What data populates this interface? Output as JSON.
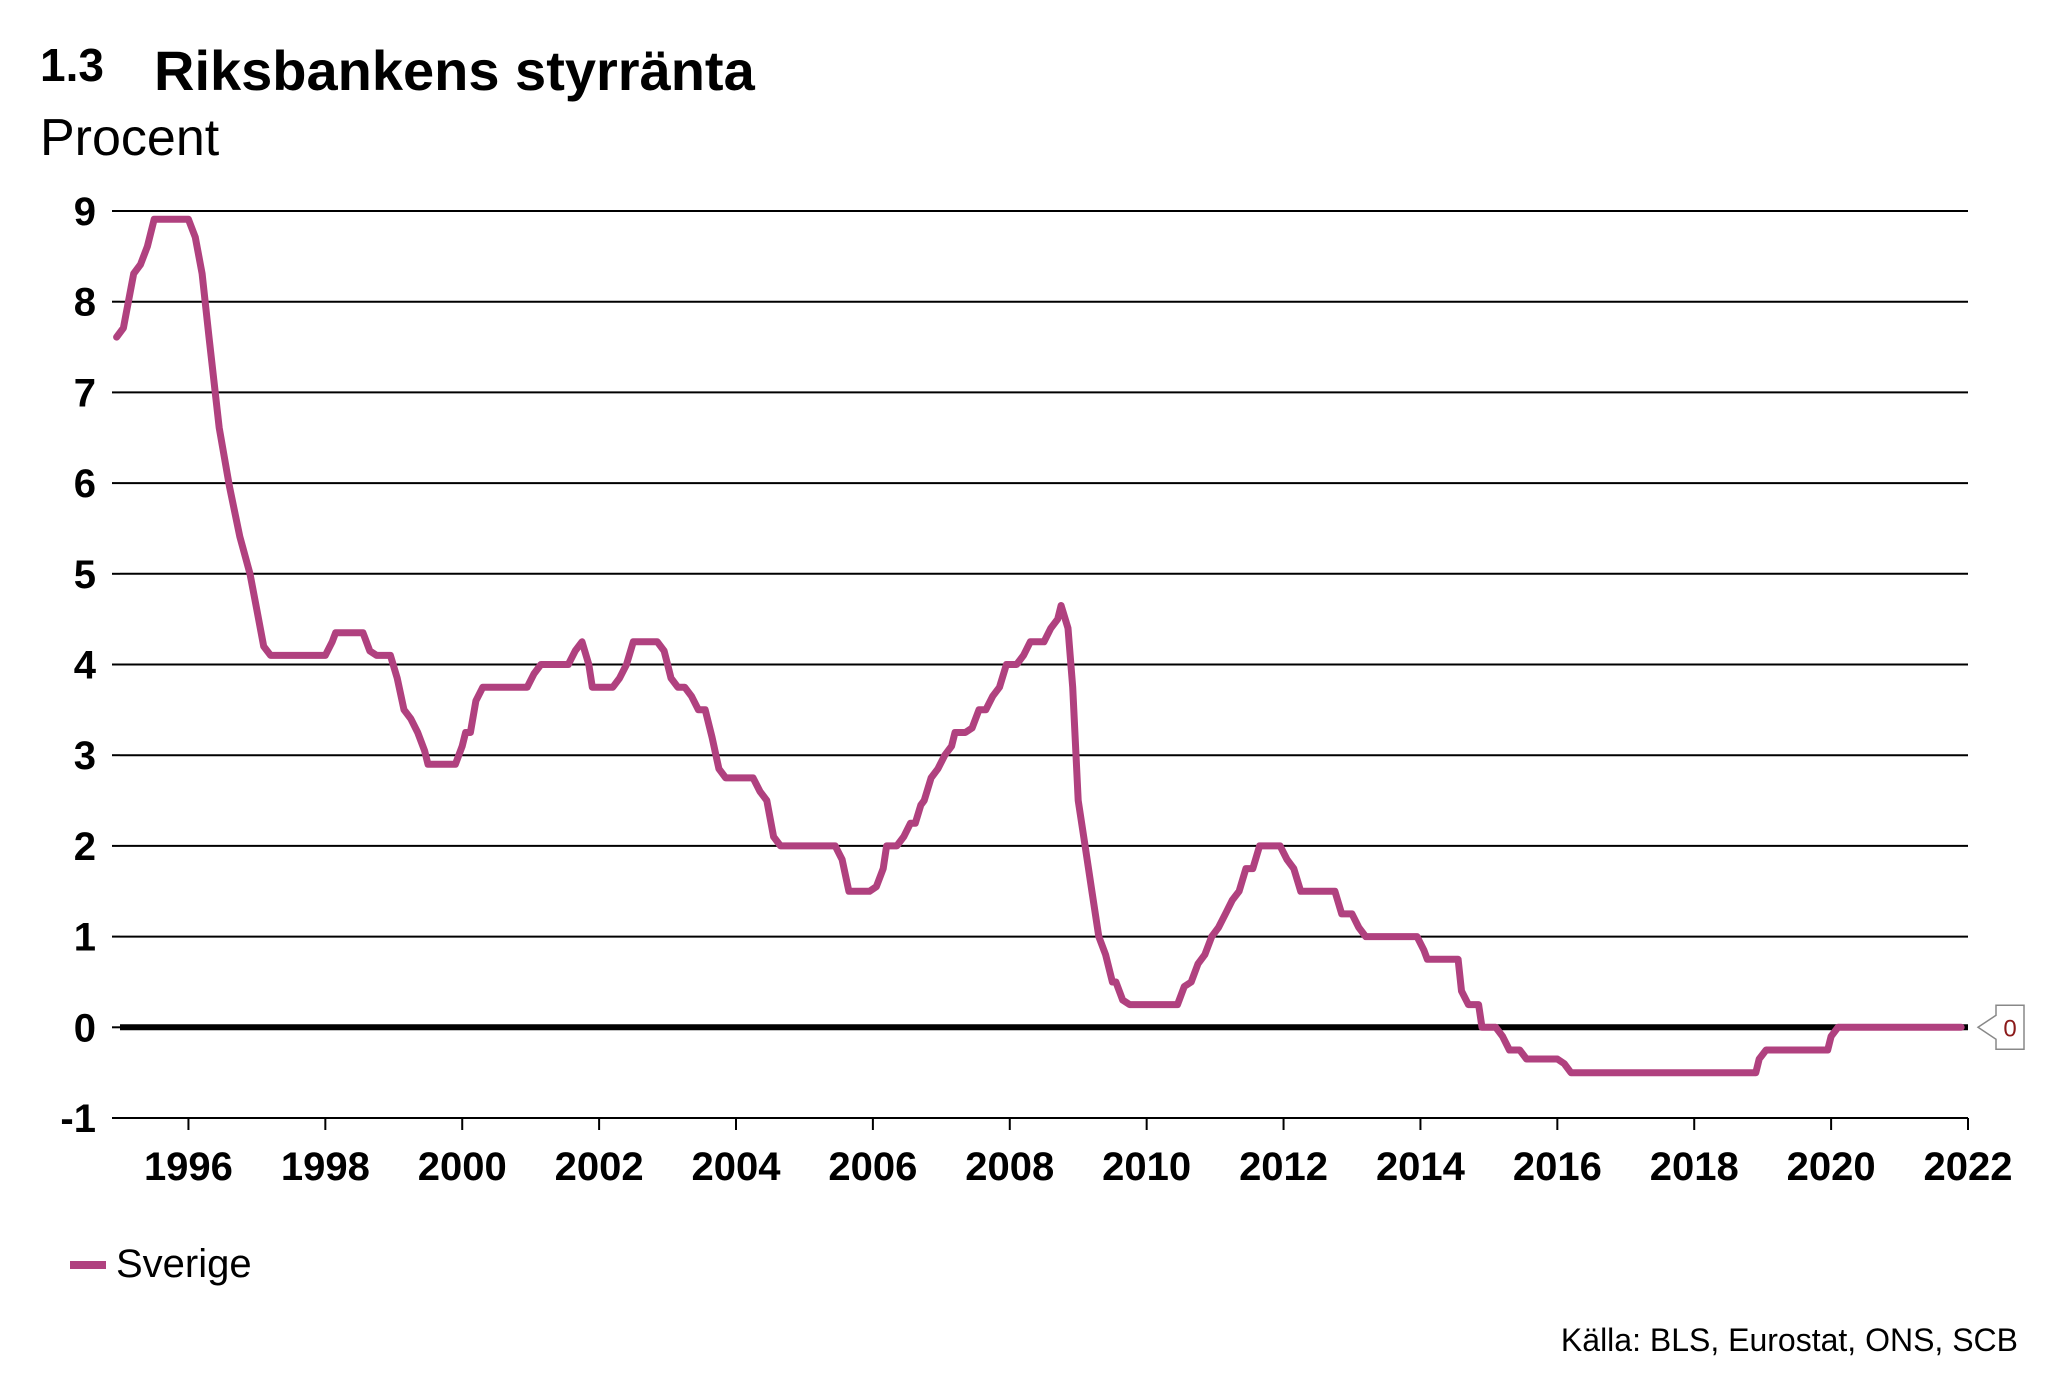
{
  "header": {
    "number": "1.3",
    "title": "Riksbankens styrränta",
    "unit": "Procent"
  },
  "source": "Källa: BLS, Eurostat, ONS, SCB",
  "chart_data": {
    "type": "line",
    "title": "Riksbankens styrränta",
    "ylabel": "Procent",
    "xlabel": "",
    "xlim": [
      1995.0,
      2022.0
    ],
    "ylim": [
      -1,
      9
    ],
    "y_ticks": [
      -1,
      0,
      1,
      2,
      3,
      4,
      5,
      6,
      7,
      8,
      9
    ],
    "x_ticks": [
      1996,
      1998,
      2000,
      2002,
      2004,
      2006,
      2008,
      2010,
      2012,
      2014,
      2016,
      2018,
      2020,
      2022
    ],
    "grid": "horizontal",
    "legend_position": "bottom-left",
    "end_label": "0",
    "series": [
      {
        "name": "Sverige",
        "color": "#b0417f",
        "points": [
          [
            1994.95,
            7.61
          ],
          [
            1995.05,
            7.71
          ],
          [
            1995.2,
            8.31
          ],
          [
            1995.3,
            8.41
          ],
          [
            1995.4,
            8.61
          ],
          [
            1995.5,
            8.91
          ],
          [
            1995.6,
            8.91
          ],
          [
            1995.9,
            8.91
          ],
          [
            1996.0,
            8.91
          ],
          [
            1996.1,
            8.71
          ],
          [
            1996.2,
            8.31
          ],
          [
            1996.3,
            7.61
          ],
          [
            1996.45,
            6.61
          ],
          [
            1996.6,
            5.96
          ],
          [
            1996.75,
            5.41
          ],
          [
            1996.9,
            5.0
          ],
          [
            1997.0,
            4.6
          ],
          [
            1997.1,
            4.2
          ],
          [
            1997.2,
            4.1
          ],
          [
            1997.5,
            4.1
          ],
          [
            1997.9,
            4.1
          ],
          [
            1998.0,
            4.1
          ],
          [
            1998.1,
            4.25
          ],
          [
            1998.15,
            4.35
          ],
          [
            1998.35,
            4.35
          ],
          [
            1998.45,
            4.35
          ],
          [
            1998.55,
            4.35
          ],
          [
            1998.65,
            4.15
          ],
          [
            1998.75,
            4.1
          ],
          [
            1998.95,
            4.1
          ],
          [
            1999.05,
            3.85
          ],
          [
            1999.15,
            3.5
          ],
          [
            1999.25,
            3.4
          ],
          [
            1999.35,
            3.25
          ],
          [
            1999.45,
            3.05
          ],
          [
            1999.5,
            2.9
          ],
          [
            1999.8,
            2.9
          ],
          [
            1999.9,
            2.9
          ],
          [
            2000.0,
            3.1
          ],
          [
            2000.05,
            3.25
          ],
          [
            2000.12,
            3.25
          ],
          [
            2000.2,
            3.6
          ],
          [
            2000.3,
            3.75
          ],
          [
            2000.6,
            3.75
          ],
          [
            2000.9,
            3.75
          ],
          [
            2000.95,
            3.75
          ],
          [
            2001.05,
            3.9
          ],
          [
            2001.15,
            4.0
          ],
          [
            2001.5,
            4.0
          ],
          [
            2001.55,
            4.0
          ],
          [
            2001.65,
            4.15
          ],
          [
            2001.75,
            4.25
          ],
          [
            2001.85,
            4.0
          ],
          [
            2001.9,
            3.75
          ],
          [
            2002.0,
            3.75
          ],
          [
            2002.1,
            3.75
          ],
          [
            2002.2,
            3.75
          ],
          [
            2002.3,
            3.85
          ],
          [
            2002.4,
            4.0
          ],
          [
            2002.5,
            4.25
          ],
          [
            2002.6,
            4.25
          ],
          [
            2002.85,
            4.25
          ],
          [
            2002.95,
            4.15
          ],
          [
            2003.0,
            4.0
          ],
          [
            2003.05,
            3.85
          ],
          [
            2003.15,
            3.75
          ],
          [
            2003.25,
            3.75
          ],
          [
            2003.35,
            3.65
          ],
          [
            2003.45,
            3.5
          ],
          [
            2003.55,
            3.5
          ],
          [
            2003.65,
            3.2
          ],
          [
            2003.75,
            2.85
          ],
          [
            2003.85,
            2.75
          ],
          [
            2004.05,
            2.75
          ],
          [
            2004.15,
            2.75
          ],
          [
            2004.25,
            2.75
          ],
          [
            2004.35,
            2.6
          ],
          [
            2004.45,
            2.5
          ],
          [
            2004.55,
            2.1
          ],
          [
            2004.65,
            2.0
          ],
          [
            2004.9,
            2.0
          ],
          [
            2005.4,
            2.0
          ],
          [
            2005.45,
            2.0
          ],
          [
            2005.55,
            1.85
          ],
          [
            2005.65,
            1.5
          ],
          [
            2005.9,
            1.5
          ],
          [
            2005.95,
            1.5
          ],
          [
            2006.05,
            1.55
          ],
          [
            2006.15,
            1.75
          ],
          [
            2006.2,
            2.0
          ],
          [
            2006.35,
            2.0
          ],
          [
            2006.45,
            2.1
          ],
          [
            2006.55,
            2.25
          ],
          [
            2006.62,
            2.25
          ],
          [
            2006.7,
            2.45
          ],
          [
            2006.75,
            2.5
          ],
          [
            2006.85,
            2.75
          ],
          [
            2006.95,
            2.85
          ],
          [
            2007.05,
            3.0
          ],
          [
            2007.15,
            3.1
          ],
          [
            2007.2,
            3.25
          ],
          [
            2007.35,
            3.25
          ],
          [
            2007.45,
            3.3
          ],
          [
            2007.55,
            3.5
          ],
          [
            2007.65,
            3.5
          ],
          [
            2007.75,
            3.65
          ],
          [
            2007.85,
            3.75
          ],
          [
            2007.95,
            4.0
          ],
          [
            2008.1,
            4.0
          ],
          [
            2008.2,
            4.1
          ],
          [
            2008.3,
            4.25
          ],
          [
            2008.5,
            4.25
          ],
          [
            2008.6,
            4.4
          ],
          [
            2008.7,
            4.5
          ],
          [
            2008.75,
            4.65
          ],
          [
            2008.85,
            4.4
          ],
          [
            2008.92,
            3.75
          ],
          [
            2009.0,
            2.5
          ],
          [
            2009.1,
            2.0
          ],
          [
            2009.2,
            1.5
          ],
          [
            2009.3,
            1.0
          ],
          [
            2009.4,
            0.8
          ],
          [
            2009.5,
            0.5
          ],
          [
            2009.55,
            0.5
          ],
          [
            2009.65,
            0.3
          ],
          [
            2009.75,
            0.25
          ],
          [
            2010.0,
            0.25
          ],
          [
            2010.45,
            0.25
          ],
          [
            2010.55,
            0.45
          ],
          [
            2010.65,
            0.5
          ],
          [
            2010.75,
            0.7
          ],
          [
            2010.85,
            0.8
          ],
          [
            2010.95,
            1.0
          ],
          [
            2011.05,
            1.1
          ],
          [
            2011.15,
            1.25
          ],
          [
            2011.25,
            1.4
          ],
          [
            2011.35,
            1.5
          ],
          [
            2011.45,
            1.75
          ],
          [
            2011.55,
            1.75
          ],
          [
            2011.65,
            2.0
          ],
          [
            2011.75,
            2.0
          ],
          [
            2011.85,
            2.0
          ],
          [
            2011.95,
            2.0
          ],
          [
            2012.05,
            1.85
          ],
          [
            2012.15,
            1.75
          ],
          [
            2012.25,
            1.5
          ],
          [
            2012.45,
            1.5
          ],
          [
            2012.6,
            1.5
          ],
          [
            2012.75,
            1.5
          ],
          [
            2012.85,
            1.25
          ],
          [
            2013.0,
            1.25
          ],
          [
            2013.1,
            1.1
          ],
          [
            2013.2,
            1.0
          ],
          [
            2013.5,
            1.0
          ],
          [
            2013.9,
            1.0
          ],
          [
            2013.95,
            1.0
          ],
          [
            2014.05,
            0.85
          ],
          [
            2014.1,
            0.75
          ],
          [
            2014.35,
            0.75
          ],
          [
            2014.55,
            0.75
          ],
          [
            2014.6,
            0.4
          ],
          [
            2014.7,
            0.25
          ],
          [
            2014.85,
            0.25
          ],
          [
            2014.9,
            0.0
          ],
          [
            2015.1,
            0.0
          ],
          [
            2015.2,
            -0.1
          ],
          [
            2015.3,
            -0.25
          ],
          [
            2015.45,
            -0.25
          ],
          [
            2015.55,
            -0.35
          ],
          [
            2015.7,
            -0.35
          ],
          [
            2015.9,
            -0.35
          ],
          [
            2016.0,
            -0.35
          ],
          [
            2016.1,
            -0.4
          ],
          [
            2016.2,
            -0.5
          ],
          [
            2016.5,
            -0.5
          ],
          [
            2017.5,
            -0.5
          ],
          [
            2018.5,
            -0.5
          ],
          [
            2018.9,
            -0.5
          ],
          [
            2018.95,
            -0.35
          ],
          [
            2019.05,
            -0.25
          ],
          [
            2019.5,
            -0.25
          ],
          [
            2019.95,
            -0.25
          ],
          [
            2020.0,
            -0.1
          ],
          [
            2020.1,
            0.0
          ],
          [
            2020.5,
            0.0
          ],
          [
            2021.0,
            0.0
          ],
          [
            2021.9,
            0.0
          ]
        ]
      }
    ]
  }
}
